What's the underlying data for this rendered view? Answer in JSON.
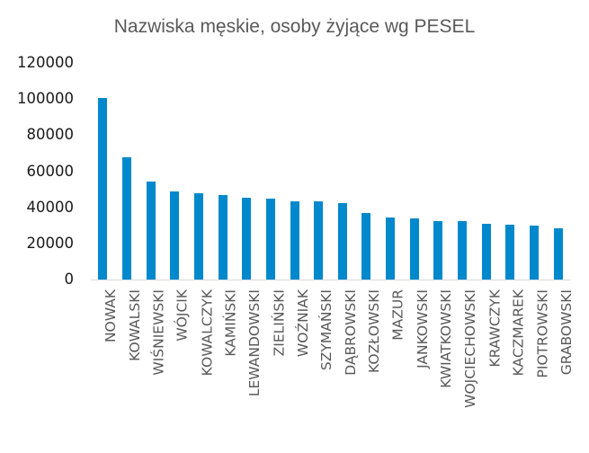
{
  "chart_data": {
    "type": "bar",
    "title": "Nazwiska męskie, osoby żyjące wg PESEL",
    "xlabel": "",
    "ylabel": "",
    "ylim": [
      0,
      120000
    ],
    "yticks": [
      0,
      20000,
      40000,
      60000,
      80000,
      100000,
      120000
    ],
    "ytick_labels": [
      "0",
      "20000",
      "40000",
      "60000",
      "80000",
      "100000",
      "120000"
    ],
    "grid": false,
    "legend": null,
    "bar_color": "#0088cc",
    "categories": [
      "NOWAK",
      "KOWALSKI",
      "WIŚNIEWSKI",
      "WÓJCIK",
      "KOWALCZYK",
      "KAMIŃSKI",
      "LEWANDOWSKI",
      "ZIELIŃSKI",
      "WOŹNIAK",
      "SZYMAŃSKI",
      "DĄBROWSKI",
      "KOZŁOWSKI",
      "MAZUR",
      "JANKOWSKI",
      "KWIATKOWSKI",
      "WOJCIECHOWSKI",
      "KRAWCZYK",
      "KACZMAREK",
      "PIOTROWSKI",
      "GRABOWSKI"
    ],
    "values": [
      100600,
      67700,
      54300,
      48800,
      47800,
      46800,
      45300,
      44800,
      43300,
      43300,
      42300,
      36900,
      34400,
      33900,
      32400,
      32400,
      30900,
      30400,
      29900,
      28400
    ]
  }
}
